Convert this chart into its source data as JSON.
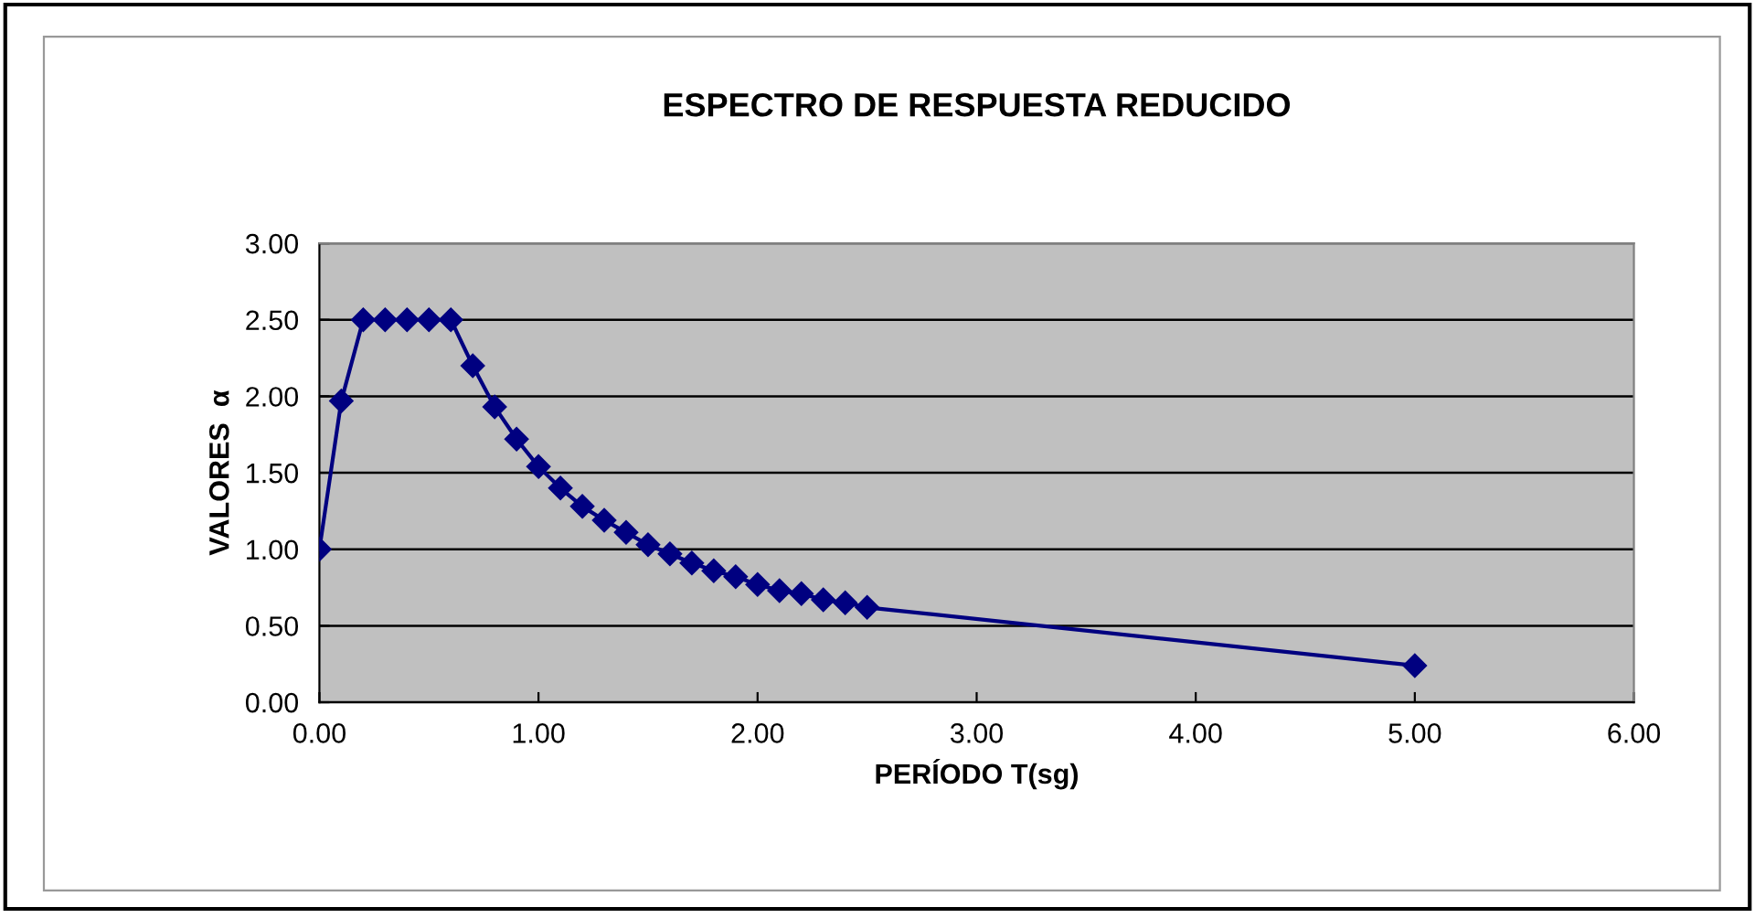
{
  "chart_data": {
    "type": "line",
    "title": "ESPECTRO DE RESPUESTA REDUCIDO",
    "xlabel": "PERÍODO T(sg)",
    "ylabel": "VALORES  α",
    "x": [
      0,
      0.1,
      0.2,
      0.3,
      0.4,
      0.5,
      0.6,
      0.7,
      0.8,
      0.9,
      1.0,
      1.1,
      1.2,
      1.3,
      1.4,
      1.5,
      1.6,
      1.7,
      1.8,
      1.9,
      2.0,
      2.1,
      2.2,
      2.3,
      2.4,
      2.5,
      5.0
    ],
    "series": [
      {
        "color": "#000080",
        "values": [
          1.0,
          1.97,
          2.5,
          2.5,
          2.5,
          2.5,
          2.5,
          2.2,
          1.93,
          1.72,
          1.54,
          1.4,
          1.28,
          1.19,
          1.11,
          1.03,
          0.97,
          0.91,
          0.86,
          0.82,
          0.77,
          0.73,
          0.71,
          0.67,
          0.65,
          0.62,
          0.24
        ]
      }
    ],
    "xlim": [
      0,
      6
    ],
    "ylim": [
      0,
      3
    ],
    "xticks": [
      {
        "value": 0,
        "label": "0.00"
      },
      {
        "value": 1,
        "label": "1.00"
      },
      {
        "value": 2,
        "label": "2.00"
      },
      {
        "value": 3,
        "label": "3.00"
      },
      {
        "value": 4,
        "label": "4.00"
      },
      {
        "value": 5,
        "label": "5.00"
      },
      {
        "value": 6,
        "label": "6.00"
      }
    ],
    "yticks": [
      {
        "value": 0,
        "label": "0.00"
      },
      {
        "value": 0.5,
        "label": "0.50"
      },
      {
        "value": 1,
        "label": "1.00"
      },
      {
        "value": 1.5,
        "label": "1.50"
      },
      {
        "value": 2,
        "label": "2.00"
      },
      {
        "value": 2.5,
        "label": "2.50"
      },
      {
        "value": 3,
        "label": "3.00"
      }
    ],
    "grid": "y",
    "marker": "diamond",
    "line_style": "solid"
  }
}
